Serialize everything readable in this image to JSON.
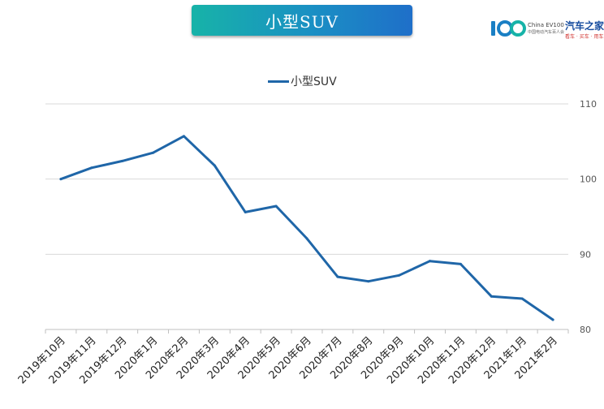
{
  "header": {
    "title": "小型SUV"
  },
  "brand": {
    "org_name": "China EV100",
    "org_sub": "中国电动汽车百人会",
    "autohome": "汽车之家",
    "autohome_sub": "看车 · 买车 · 用车",
    "colors": {
      "primary": "#1a4fa0",
      "accent": "#d0312d"
    }
  },
  "chart_data": {
    "type": "line",
    "title": "小型SUV",
    "categories": [
      "2019年10月",
      "2019年11月",
      "2019年12月",
      "2020年1月",
      "2020年2月",
      "2020年3月",
      "2020年4月",
      "2020年5月",
      "2020年6月",
      "2020年7月",
      "2020年8月",
      "2020年9月",
      "2020年10月",
      "2020年11月",
      "2020年12月",
      "2021年1月",
      "2021年2月"
    ],
    "series": [
      {
        "name": "小型SUV",
        "color": "#1f66a8",
        "values": [
          100,
          101.5,
          102.4,
          103.5,
          105.7,
          101.8,
          95.6,
          96.4,
          92.1,
          87.0,
          86.4,
          87.2,
          89.1,
          88.7,
          84.4,
          84.1,
          81.3
        ]
      }
    ],
    "ylim": [
      80,
      110
    ],
    "yticks": [
      80,
      90,
      100,
      110
    ],
    "y_axis_side": "right",
    "grid": true,
    "legend_position": "top"
  }
}
